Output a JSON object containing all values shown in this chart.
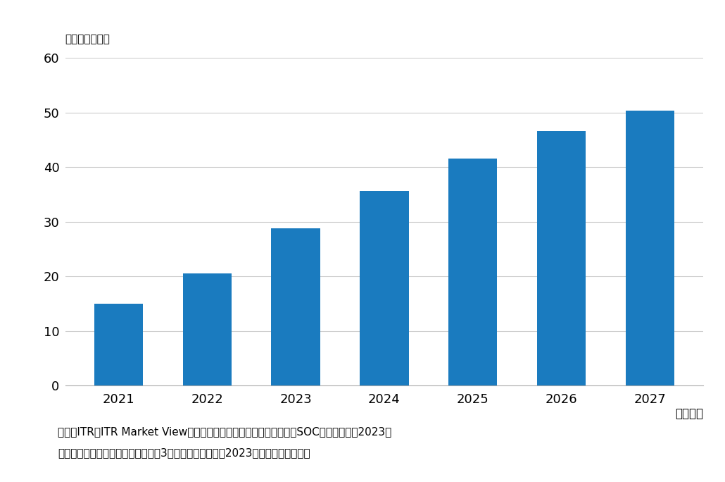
{
  "categories": [
    "2021",
    "2022",
    "2023",
    "2024",
    "2025",
    "2026",
    "2027"
  ],
  "values": [
    15.0,
    20.6,
    28.8,
    35.6,
    41.6,
    46.6,
    50.3
  ],
  "bar_color": "#1a7bbf",
  "ylabel_top": "（単位：億円）",
  "xlabel_right": "（年度）",
  "ylim": [
    0,
    60
  ],
  "yticks": [
    0,
    10,
    20,
    30,
    40,
    50,
    60
  ],
  "background_color": "#ffffff",
  "footnote_line1": "出典：ITR『ITR Market View：ゲートウェイ・セキュリティ対策型SOCサービス市場2023』",
  "footnote_line2": "＊ベンダーの売上金額を対象とし、3月期ベースで換算。2023年度以降は予測値。",
  "grid_color": "#cccccc",
  "tick_fontsize": 13,
  "footnote_fontsize": 11,
  "unit_fontsize": 11,
  "bar_width": 0.55
}
